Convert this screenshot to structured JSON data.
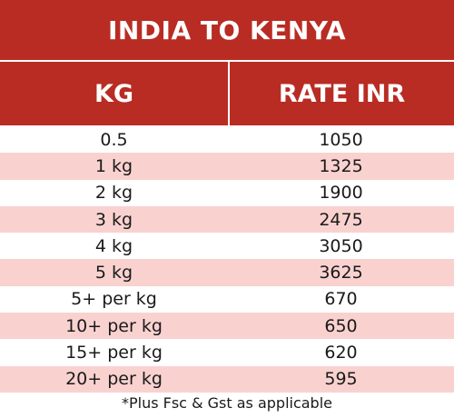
{
  "title": "INDIA TO KENYA",
  "columns": {
    "kg": "KG",
    "rate": "RATE INR"
  },
  "rows": [
    {
      "weight": "0.5",
      "rate": "1050"
    },
    {
      "weight": "1 kg",
      "rate": "1325"
    },
    {
      "weight": "2 kg",
      "rate": "1900"
    },
    {
      "weight": "3 kg",
      "rate": "2475"
    },
    {
      "weight": "4 kg",
      "rate": "3050"
    },
    {
      "weight": "5 kg",
      "rate": "3625"
    },
    {
      "weight": "5+ per kg",
      "rate": "670"
    },
    {
      "weight": "10+ per kg",
      "rate": "650"
    },
    {
      "weight": "15+ per kg",
      "rate": "620"
    },
    {
      "weight": "20+ per kg",
      "rate": "595"
    }
  ],
  "note": "*Plus Fsc & Gst as applicable",
  "colors": {
    "header": "#b92c23",
    "stripe": "#f9d2d0"
  }
}
